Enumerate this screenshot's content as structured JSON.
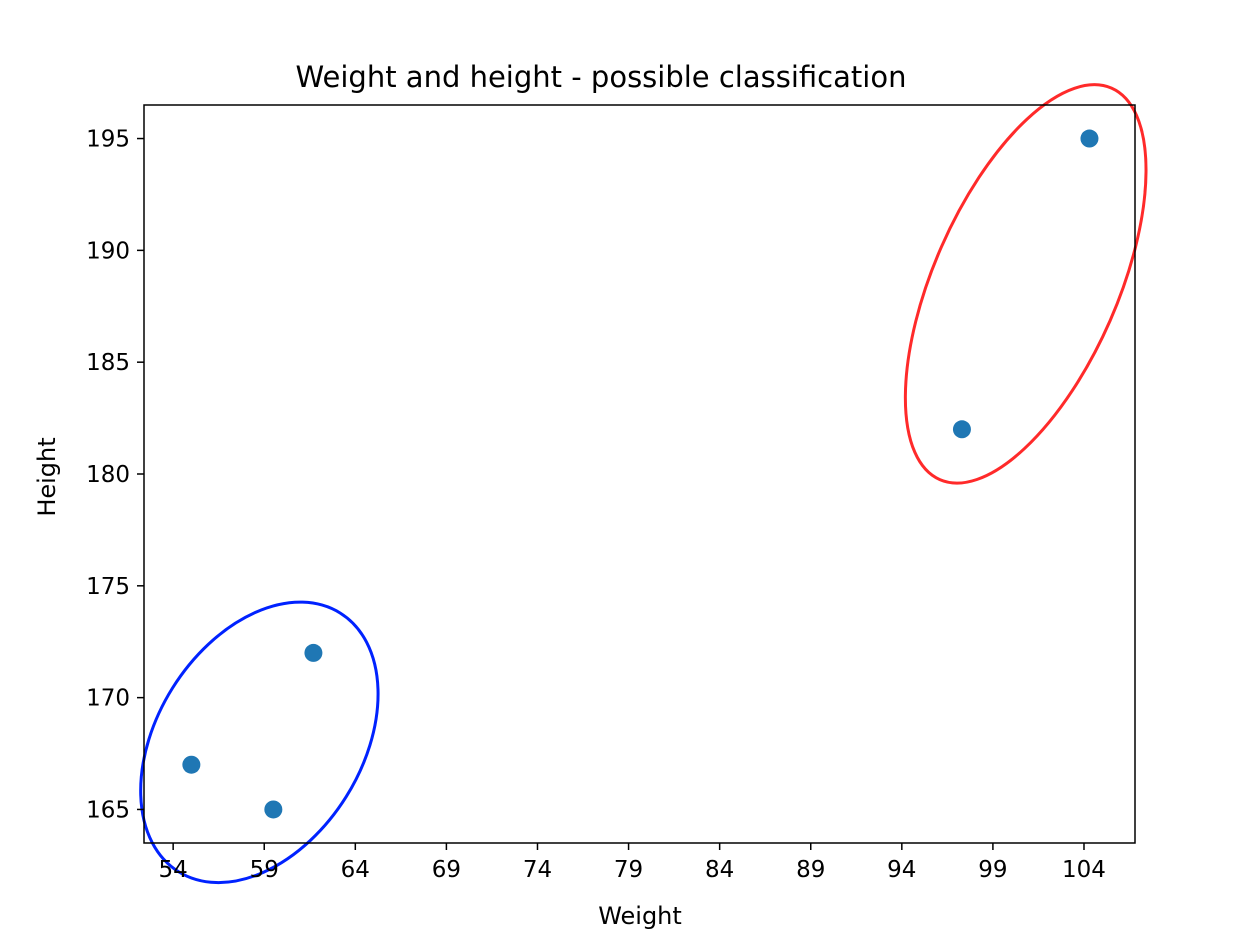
{
  "chart_data": {
    "type": "scatter",
    "title": "Weight and height - possible classification",
    "xlabel": "Weight",
    "ylabel": "Height",
    "xlim": [
      52.4,
      106.8
    ],
    "ylim": [
      163.5,
      196.5
    ],
    "xticks": [
      54,
      59,
      64,
      69,
      74,
      79,
      84,
      89,
      94,
      99,
      104
    ],
    "yticks": [
      165,
      170,
      175,
      180,
      185,
      190,
      195
    ],
    "grid": false,
    "point_color": "#1f77b4",
    "points": [
      {
        "x": 55,
        "y": 167
      },
      {
        "x": 59.5,
        "y": 165
      },
      {
        "x": 61.7,
        "y": 172
      },
      {
        "x": 97.3,
        "y": 182
      },
      {
        "x": 104.3,
        "y": 195
      }
    ],
    "clusters": [
      {
        "color": "#0022ff",
        "members": [
          0,
          1,
          2
        ]
      },
      {
        "color": "#ff2a2a",
        "members": [
          3,
          4
        ]
      }
    ]
  }
}
